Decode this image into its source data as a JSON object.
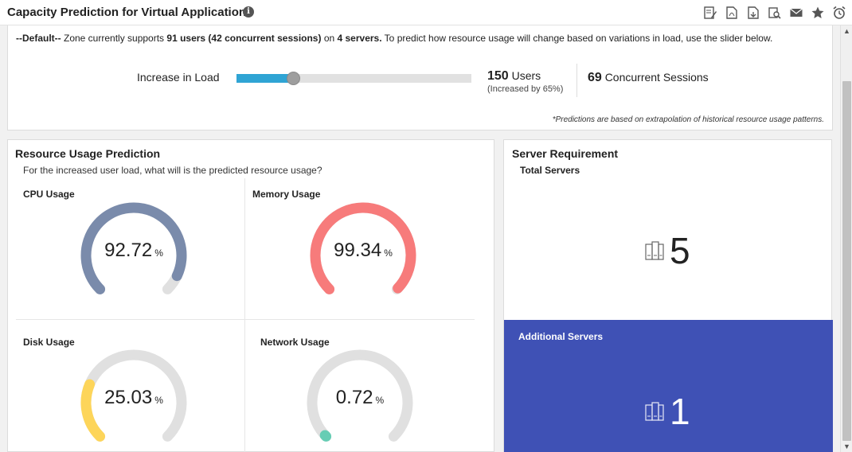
{
  "header": {
    "title": "Capacity Prediction for Virtual Applications",
    "info_icon": "info-icon",
    "toolbar_icons": [
      "edit-report-icon",
      "pdf-icon",
      "export-icon",
      "print-preview-icon",
      "email-icon",
      "favorite-star-icon",
      "alarm-clock-icon"
    ]
  },
  "summary": {
    "default_prefix": "--Default--",
    "text_1": " Zone currently supports ",
    "users_bold": "91 users (42 concurrent sessions)",
    "text_2": " on ",
    "servers_bold": "4 servers.",
    "text_3": " To predict how resource usage will change based on variations in load, use the slider below."
  },
  "slider": {
    "label": "Increase in Load",
    "value_percent": 24
  },
  "users": {
    "count": "150",
    "unit": "Users",
    "note": "(Increased by 65%)"
  },
  "sessions": {
    "count": "69",
    "unit": "Concurrent Sessions"
  },
  "footnote": "*Predictions are based on extrapolation of historical resource usage patterns.",
  "resource": {
    "title": "Resource Usage Prediction",
    "subtitle": "For the increased user load, what will is the predicted resource usage?",
    "gauges": [
      {
        "label": "CPU Usage",
        "value": "92.72",
        "unit": "%",
        "fraction": 0.9272,
        "color": "#7a8bab"
      },
      {
        "label": "Memory Usage",
        "value": "99.34",
        "unit": "%",
        "fraction": 0.9934,
        "color": "#f77b7b"
      },
      {
        "label": "Disk Usage",
        "value": "25.03",
        "unit": "%",
        "fraction": 0.2503,
        "color": "#fdd55a"
      },
      {
        "label": "Network Usage",
        "value": "0.72",
        "unit": "%",
        "fraction": 0.0072,
        "color": "#66cdb4"
      }
    ]
  },
  "servers": {
    "title": "Server Requirement",
    "total_label": "Total Servers",
    "total_value": "5",
    "additional_label": "Additional Servers",
    "additional_value": "1",
    "additional_bg": "#3f51b5",
    "server_icon": "server-rack-icon"
  }
}
